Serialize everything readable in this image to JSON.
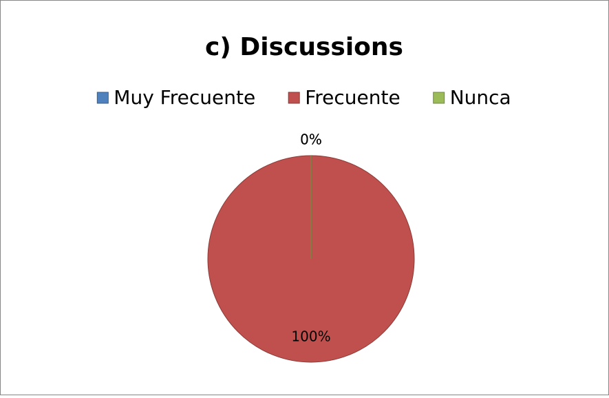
{
  "chart_data": {
    "type": "pie",
    "title": "c) Discussions",
    "categories": [
      "Muy Frecuente",
      "Frecuente",
      "Nunca"
    ],
    "values": [
      0,
      100,
      0
    ],
    "value_labels": [
      "0%",
      "100%",
      "0%"
    ],
    "colors": [
      "#4f81bd",
      "#c0504d",
      "#9bbb59"
    ],
    "legend": "top"
  }
}
